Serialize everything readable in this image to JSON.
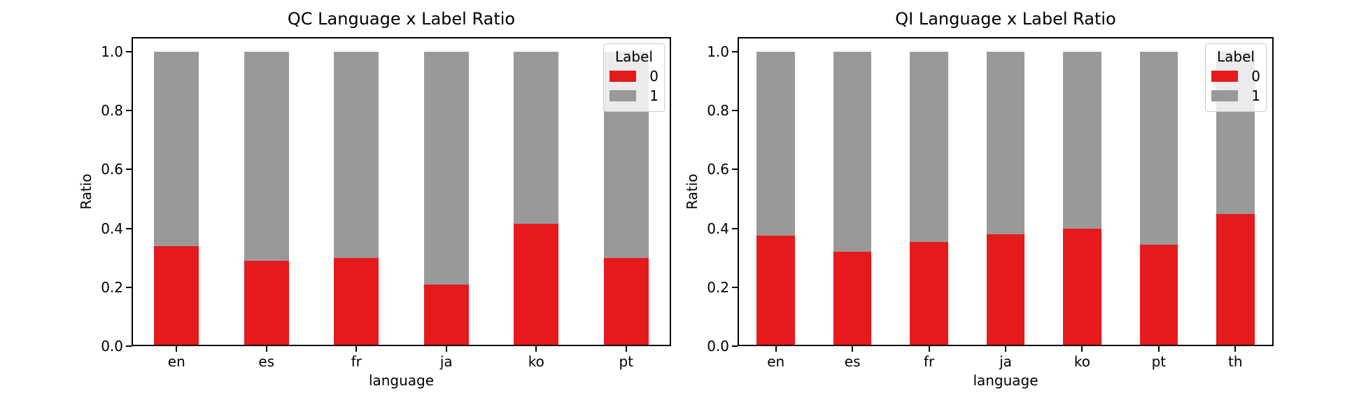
{
  "chart_data": [
    {
      "type": "bar",
      "stacked": true,
      "title": "QC Language x Label Ratio",
      "xlabel": "language",
      "ylabel": "Ratio",
      "categories": [
        "en",
        "es",
        "fr",
        "ja",
        "ko",
        "pt"
      ],
      "series": [
        {
          "name": "0",
          "color": "#e41a1c",
          "values": [
            0.34,
            0.29,
            0.3,
            0.21,
            0.415,
            0.3
          ]
        },
        {
          "name": "1",
          "color": "#999999",
          "values": [
            0.66,
            0.71,
            0.7,
            0.79,
            0.585,
            0.7
          ]
        }
      ],
      "ylim": [
        0,
        1.05
      ],
      "yticks": [
        0.0,
        0.2,
        0.4,
        0.6,
        0.8,
        1.0
      ],
      "ytick_labels": [
        "0.0",
        "0.2",
        "0.4",
        "0.6",
        "0.8",
        "1.0"
      ],
      "grid": false,
      "legend": {
        "title": "Label",
        "position": "upper right",
        "entries": [
          {
            "label": "0",
            "color": "#e41a1c"
          },
          {
            "label": "1",
            "color": "#999999"
          }
        ]
      }
    },
    {
      "type": "bar",
      "stacked": true,
      "title": "QI Language x Label Ratio",
      "xlabel": "language",
      "ylabel": "Ratio",
      "categories": [
        "en",
        "es",
        "fr",
        "ja",
        "ko",
        "pt",
        "th"
      ],
      "series": [
        {
          "name": "0",
          "color": "#e41a1c",
          "values": [
            0.375,
            0.32,
            0.355,
            0.38,
            0.4,
            0.345,
            0.45
          ]
        },
        {
          "name": "1",
          "color": "#999999",
          "values": [
            0.625,
            0.68,
            0.645,
            0.62,
            0.6,
            0.655,
            0.55
          ]
        }
      ],
      "ylim": [
        0,
        1.05
      ],
      "yticks": [
        0.0,
        0.2,
        0.4,
        0.6,
        0.8,
        1.0
      ],
      "ytick_labels": [
        "0.0",
        "0.2",
        "0.4",
        "0.6",
        "0.8",
        "1.0"
      ],
      "grid": false,
      "legend": {
        "title": "Label",
        "position": "upper right",
        "entries": [
          {
            "label": "0",
            "color": "#e41a1c"
          },
          {
            "label": "1",
            "color": "#999999"
          }
        ]
      }
    }
  ]
}
